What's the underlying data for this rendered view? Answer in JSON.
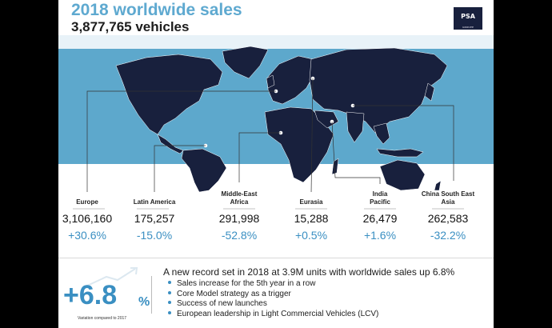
{
  "title": "2018 worldwide sales",
  "subtitle": "3,877,765 vehicles",
  "logo": {
    "text": "PSA",
    "sub": "GROUPE"
  },
  "regions": [
    {
      "name": "Europe",
      "value": "3,106,160",
      "change": "+30.6%"
    },
    {
      "name": "Latin America",
      "value": "175,257",
      "change": "-15.0%"
    },
    {
      "name": "Middle-East Africa",
      "value": "291,998",
      "change": "-52.8%"
    },
    {
      "name": "Eurasia",
      "value": "15,288",
      "change": "+0.5%"
    },
    {
      "name": "India Pacific",
      "value": "26,479",
      "change": "+1.6%"
    },
    {
      "name": "China South East Asia",
      "value": "262,583",
      "change": "-32.2%"
    }
  ],
  "summary": {
    "big_number": "+6.8",
    "big_unit": "%",
    "variation_note": "Variation compared to 2017",
    "headline": "A new record set in 2018 at 3.9M units with worldwide sales up 6.8%",
    "bullets": [
      "Sales increase for the 5th year in a row",
      "Core Model strategy as a trigger",
      "Success of new launches",
      "European leadership in Light Commercial Vehicles (LCV)"
    ]
  },
  "colors": {
    "accent": "#3a8fc2",
    "title": "#5ea9d0",
    "band": "#5da8cc",
    "land": "#18203d",
    "background": "#ffffff"
  }
}
